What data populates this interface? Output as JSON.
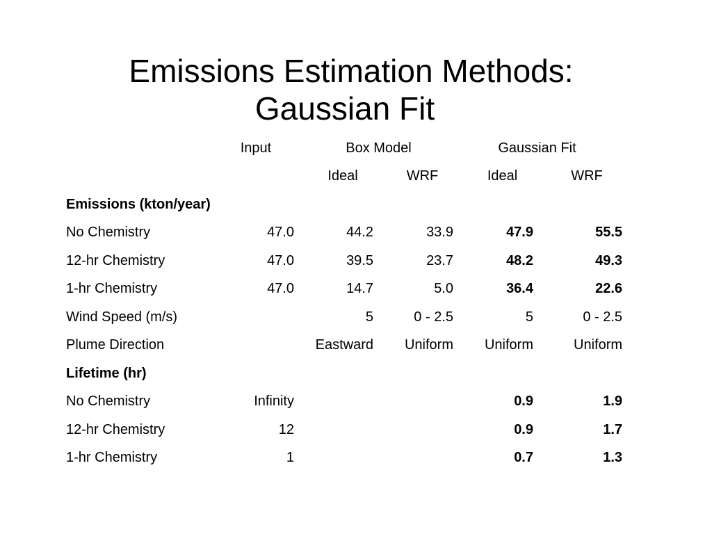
{
  "title": {
    "line1": "Emissions Estimation Methods:",
    "line2": "Gaussian Fit"
  },
  "table": {
    "group_headers": {
      "input": "Input",
      "box_model": "Box Model",
      "gaussian_fit": "Gaussian Fit"
    },
    "sub_headers": [
      "Ideal",
      "WRF",
      "Ideal",
      "WRF"
    ],
    "sections": [
      {
        "heading": "Emissions (kton/year)",
        "rows": [
          {
            "label": "No Chemistry",
            "input": "47.0",
            "box_ideal": "44.2",
            "box_wrf": "33.9",
            "gauss_ideal": "47.9",
            "gauss_wrf": "55.5"
          },
          {
            "label": "12-hr Chemistry",
            "input": "47.0",
            "box_ideal": "39.5",
            "box_wrf": "23.7",
            "gauss_ideal": "48.2",
            "gauss_wrf": "49.3"
          },
          {
            "label": "1-hr Chemistry",
            "input": "47.0",
            "box_ideal": "14.7",
            "box_wrf": "5.0",
            "gauss_ideal": "36.4",
            "gauss_wrf": "22.6"
          },
          {
            "label": "Wind Speed (m/s)",
            "input": "",
            "box_ideal": "5",
            "box_wrf": "0 - 2.5",
            "gauss_ideal": "5",
            "gauss_wrf": "0 - 2.5"
          },
          {
            "label": "Plume Direction",
            "input": "",
            "box_ideal": "Eastward",
            "box_wrf": "Uniform",
            "gauss_ideal": "Uniform",
            "gauss_wrf": "Uniform"
          }
        ]
      },
      {
        "heading": "Lifetime (hr)",
        "rows": [
          {
            "label": "No Chemistry",
            "input": "Infinity",
            "box_ideal": "",
            "box_wrf": "",
            "gauss_ideal": "0.9",
            "gauss_wrf": "1.9"
          },
          {
            "label": "12-hr Chemistry",
            "input": "12",
            "box_ideal": "",
            "box_wrf": "",
            "gauss_ideal": "0.9",
            "gauss_wrf": "1.7"
          },
          {
            "label": "1-hr Chemistry",
            "input": "1",
            "box_ideal": "",
            "box_wrf": "",
            "gauss_ideal": "0.7",
            "gauss_wrf": "1.3"
          }
        ]
      }
    ]
  }
}
